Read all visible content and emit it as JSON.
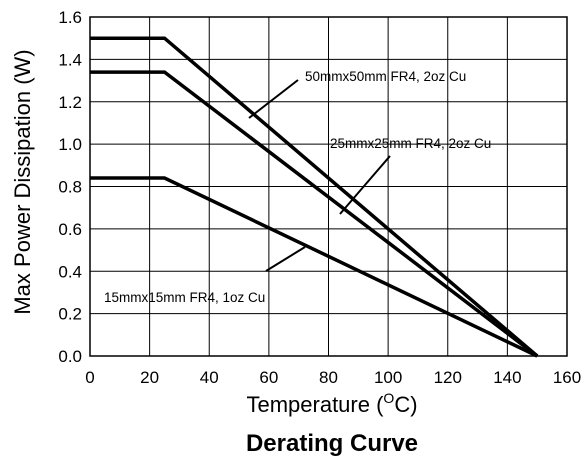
{
  "chart_data": {
    "type": "line",
    "title": "Derating Curve",
    "xlabel": "Temperature (°C)",
    "xlabel_parts": {
      "pre": "Temperature (",
      "sup": "O",
      "post": "C)"
    },
    "ylabel": "Max Power Dissipation (W)",
    "xlim": [
      0,
      160
    ],
    "ylim": [
      0.0,
      1.6
    ],
    "xticks": [
      "0",
      "20",
      "40",
      "60",
      "80",
      "100",
      "120",
      "140",
      "160"
    ],
    "yticks": [
      "0.0",
      "0.2",
      "0.4",
      "0.6",
      "0.8",
      "1.0",
      "1.2",
      "1.4",
      "1.6"
    ],
    "grid": true,
    "series": [
      {
        "name": "50mmx50mm FR4, 2oz Cu",
        "x": [
          0,
          25,
          150
        ],
        "y": [
          1.5,
          1.5,
          0.0
        ]
      },
      {
        "name": "25mmx25mm FR4, 2oz Cu",
        "x": [
          0,
          25,
          150
        ],
        "y": [
          1.34,
          1.34,
          0.0
        ]
      },
      {
        "name": "15mmx15mm FR4, 1oz Cu",
        "x": [
          0,
          25,
          150
        ],
        "y": [
          0.84,
          0.84,
          0.0
        ]
      }
    ],
    "annotations": [
      {
        "text": "50mmx50mm FR4, 2oz Cu",
        "target": 0
      },
      {
        "text": "25mmx25mm FR4, 2oz Cu",
        "target": 1
      },
      {
        "text": "15mmx15mm FR4, 1oz Cu",
        "target": 2
      }
    ]
  }
}
